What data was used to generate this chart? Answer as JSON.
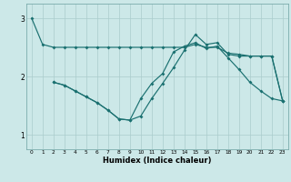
{
  "xlabel": "Humidex (Indice chaleur)",
  "background_color": "#cce8e8",
  "grid_color": "#aacccc",
  "line_color": "#1a7070",
  "xlim": [
    -0.5,
    23.5
  ],
  "ylim": [
    0.75,
    3.25
  ],
  "yticks": [
    1,
    2,
    3
  ],
  "xticks": [
    0,
    1,
    2,
    3,
    4,
    5,
    6,
    7,
    8,
    9,
    10,
    11,
    12,
    13,
    14,
    15,
    16,
    17,
    18,
    19,
    20,
    21,
    22,
    23
  ],
  "line1_x": [
    0,
    1,
    2,
    3,
    4,
    5,
    6,
    7,
    8,
    9,
    10,
    11,
    12,
    13,
    14,
    15,
    16,
    17,
    18,
    19,
    20,
    21,
    22,
    23
  ],
  "line1_y": [
    3.0,
    2.55,
    2.5,
    2.5,
    2.5,
    2.5,
    2.5,
    2.5,
    2.5,
    2.5,
    2.5,
    2.5,
    2.5,
    2.5,
    2.5,
    2.55,
    2.5,
    2.5,
    2.4,
    2.38,
    2.35,
    2.35,
    2.35,
    1.58
  ],
  "line2_x": [
    2,
    3,
    4,
    5,
    6,
    7,
    8,
    9,
    10,
    11,
    12,
    13,
    14,
    15,
    16,
    17,
    18,
    19,
    20,
    21,
    22,
    23
  ],
  "line2_y": [
    1.9,
    1.85,
    1.75,
    1.65,
    1.55,
    1.42,
    1.27,
    1.25,
    1.32,
    1.62,
    1.88,
    2.15,
    2.45,
    2.72,
    2.55,
    2.58,
    2.38,
    2.35,
    2.35,
    2.35,
    2.35,
    1.58
  ],
  "line3_x": [
    2,
    3,
    4,
    5,
    6,
    7,
    8,
    9,
    10,
    11,
    12,
    13,
    14,
    15,
    16,
    17,
    18,
    19,
    20,
    21,
    22,
    23
  ],
  "line3_y": [
    1.9,
    1.85,
    1.75,
    1.65,
    1.55,
    1.42,
    1.27,
    1.25,
    1.62,
    1.88,
    2.05,
    2.42,
    2.52,
    2.58,
    2.48,
    2.52,
    2.32,
    2.12,
    1.9,
    1.75,
    1.62,
    1.58
  ]
}
